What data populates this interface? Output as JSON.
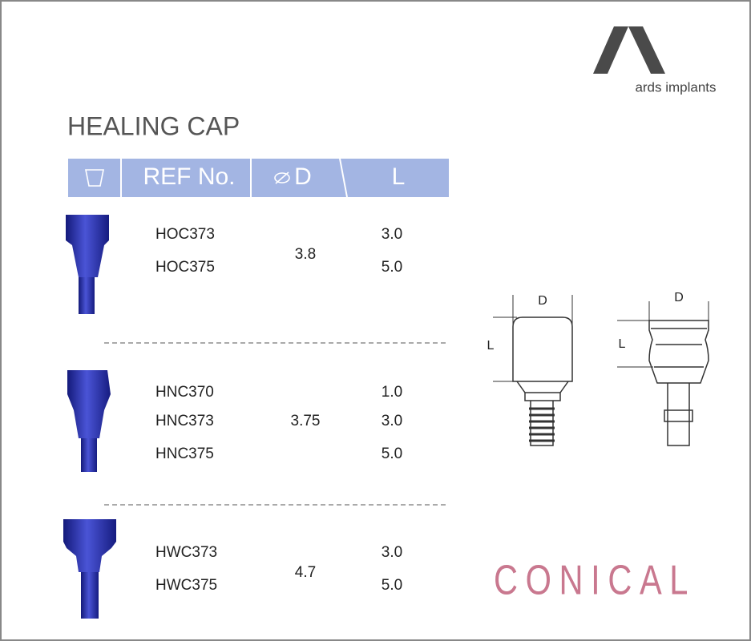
{
  "brand": "ards implants",
  "title": "HEALING CAP",
  "table": {
    "header": [
      "REF No.",
      "D",
      "L"
    ],
    "groups": [
      {
        "refs": [
          "HOC373",
          "HOC375"
        ],
        "diameter": "3.8",
        "lengths": [
          "3.0",
          "5.0"
        ]
      },
      {
        "refs": [
          "HNC370",
          "HNC373",
          "HNC375"
        ],
        "diameter": "3.75",
        "lengths": [
          "1.0",
          "3.0",
          "5.0"
        ]
      },
      {
        "refs": [
          "HWC373",
          "HWC375"
        ],
        "diameter": "4.7",
        "lengths": [
          "3.0",
          "5.0"
        ]
      }
    ]
  },
  "diagrams": [
    {
      "d_label": "D",
      "l_label": "L"
    },
    {
      "d_label": "D",
      "l_label": "L"
    }
  ],
  "footer": "CONICAL"
}
